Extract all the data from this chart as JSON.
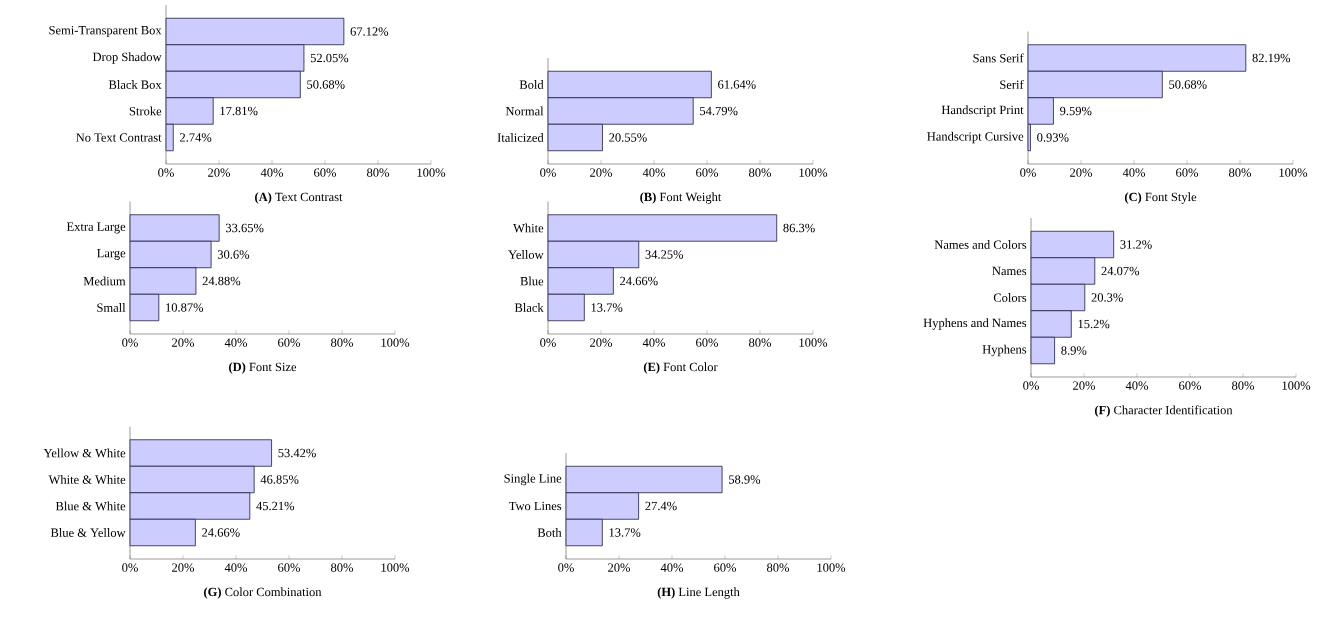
{
  "chart_data": [
    {
      "type": "bar",
      "orientation": "horizontal",
      "title": "**(A)** Text Contrast",
      "categories": [
        "Semi-Transparent Box",
        "Drop Shadow",
        "Black Box",
        "Stroke",
        "No Text Contrast"
      ],
      "values": [
        67.12,
        52.05,
        50.68,
        17.81,
        2.74
      ],
      "value_labels": [
        "67.12%",
        "52.05%",
        "50.68%",
        "17.81%",
        "2.74%"
      ],
      "color": "#ccccff",
      "xlim": [
        0,
        100
      ],
      "xticks": [
        {
          "value": 0,
          "label": "0%"
        },
        {
          "value": 20,
          "label": "20%"
        },
        {
          "value": 40,
          "label": "40%"
        },
        {
          "value": 60,
          "label": "60%"
        },
        {
          "value": 80,
          "label": "80%"
        },
        {
          "value": 100,
          "label": "100%"
        }
      ]
    },
    {
      "type": "bar",
      "orientation": "horizontal",
      "title": "**(B)** Font Weight",
      "categories": [
        "Bold",
        "Normal",
        "Italicized"
      ],
      "values": [
        61.64,
        54.79,
        20.55
      ],
      "value_labels": [
        "61.64%",
        "54.79%",
        "20.55%"
      ],
      "color": "#ccccff",
      "xlim": [
        0,
        100
      ],
      "xticks": [
        {
          "value": 0,
          "label": "0%"
        },
        {
          "value": 20,
          "label": "20%"
        },
        {
          "value": 40,
          "label": "40%"
        },
        {
          "value": 60,
          "label": "60%"
        },
        {
          "value": 80,
          "label": "80%"
        },
        {
          "value": 100,
          "label": "100%"
        }
      ]
    },
    {
      "type": "bar",
      "orientation": "horizontal",
      "title": "**(C)** Font Style",
      "categories": [
        "Sans Serif",
        "Serif",
        "Handscript Print",
        "Handscript Cursive"
      ],
      "values": [
        82.19,
        50.68,
        9.59,
        0.93
      ],
      "value_labels": [
        "82.19%",
        "50.68%",
        "9.59%",
        "0.93%"
      ],
      "color": "#ccccff",
      "xlim": [
        0,
        100
      ],
      "xticks": [
        {
          "value": 0,
          "label": "0%"
        },
        {
          "value": 20,
          "label": "20%"
        },
        {
          "value": 40,
          "label": "40%"
        },
        {
          "value": 60,
          "label": "60%"
        },
        {
          "value": 80,
          "label": "80%"
        },
        {
          "value": 100,
          "label": "100%"
        }
      ]
    },
    {
      "type": "bar",
      "orientation": "horizontal",
      "title": "**(D)** Font Size",
      "categories": [
        "Extra Large",
        "Large",
        "Medium",
        "Small"
      ],
      "values": [
        33.65,
        30.6,
        24.88,
        10.87
      ],
      "value_labels": [
        "33.65%",
        "30.6%",
        "24.88%",
        "10.87%"
      ],
      "color": "#ccccff",
      "xlim": [
        0,
        100
      ],
      "xticks": [
        {
          "value": 0,
          "label": "0%"
        },
        {
          "value": 20,
          "label": "20%"
        },
        {
          "value": 40,
          "label": "40%"
        },
        {
          "value": 60,
          "label": "60%"
        },
        {
          "value": 80,
          "label": "80%"
        },
        {
          "value": 100,
          "label": "100%"
        }
      ]
    },
    {
      "type": "bar",
      "orientation": "horizontal",
      "title": "**(E)** Font Color",
      "categories": [
        "White",
        "Yellow",
        "Blue",
        "Black"
      ],
      "values": [
        86.3,
        34.25,
        24.66,
        13.7
      ],
      "value_labels": [
        "86.3%",
        "34.25%",
        "24.66%",
        "13.7%"
      ],
      "color": "#ccccff",
      "xlim": [
        0,
        100
      ],
      "xticks": [
        {
          "value": 0,
          "label": "0%"
        },
        {
          "value": 20,
          "label": "20%"
        },
        {
          "value": 40,
          "label": "40%"
        },
        {
          "value": 60,
          "label": "60%"
        },
        {
          "value": 80,
          "label": "80%"
        },
        {
          "value": 100,
          "label": "100%"
        }
      ]
    },
    {
      "type": "bar",
      "orientation": "horizontal",
      "title": "**(F)** Character Identification",
      "categories": [
        "Names and Colors",
        "Names",
        "Colors",
        "Hyphens and Names",
        "Hyphens"
      ],
      "values": [
        31.2,
        24.07,
        20.3,
        15.2,
        8.9
      ],
      "value_labels": [
        "31.2%",
        "24.07%",
        "20.3%",
        "15.2%",
        "8.9%"
      ],
      "color": "#ccccff",
      "xlim": [
        0,
        100
      ],
      "xticks": [
        {
          "value": 0,
          "label": "0%"
        },
        {
          "value": 20,
          "label": "20%"
        },
        {
          "value": 40,
          "label": "40%"
        },
        {
          "value": 60,
          "label": "60%"
        },
        {
          "value": 80,
          "label": "80%"
        },
        {
          "value": 100,
          "label": "100%"
        }
      ]
    },
    {
      "type": "bar",
      "orientation": "horizontal",
      "title": "**(G)** Color Combination",
      "categories": [
        "Yellow & White",
        "White & White",
        "Blue & White",
        "Blue & Yellow"
      ],
      "values": [
        53.42,
        46.85,
        45.21,
        24.66
      ],
      "value_labels": [
        "53.42%",
        "46.85%",
        "45.21%",
        "24.66%"
      ],
      "color": "#ccccff",
      "xlim": [
        0,
        100
      ],
      "xticks": [
        {
          "value": 0,
          "label": "0%"
        },
        {
          "value": 20,
          "label": "20%"
        },
        {
          "value": 40,
          "label": "40%"
        },
        {
          "value": 60,
          "label": "60%"
        },
        {
          "value": 80,
          "label": "80%"
        },
        {
          "value": 100,
          "label": "100%"
        }
      ]
    },
    {
      "type": "bar",
      "orientation": "horizontal",
      "title": "**(H)** Line Length",
      "categories": [
        "Single Line",
        "Two Lines",
        "Both"
      ],
      "values": [
        58.9,
        27.4,
        13.7
      ],
      "value_labels": [
        "58.9%",
        "27.4%",
        "13.7%"
      ],
      "color": "#ccccff",
      "xlim": [
        0,
        100
      ],
      "xticks": [
        {
          "value": 0,
          "label": "0%"
        },
        {
          "value": 20,
          "label": "20%"
        },
        {
          "value": 40,
          "label": "40%"
        },
        {
          "value": 60,
          "label": "60%"
        },
        {
          "value": 80,
          "label": "80%"
        },
        {
          "value": 100,
          "label": "100%"
        }
      ]
    }
  ]
}
